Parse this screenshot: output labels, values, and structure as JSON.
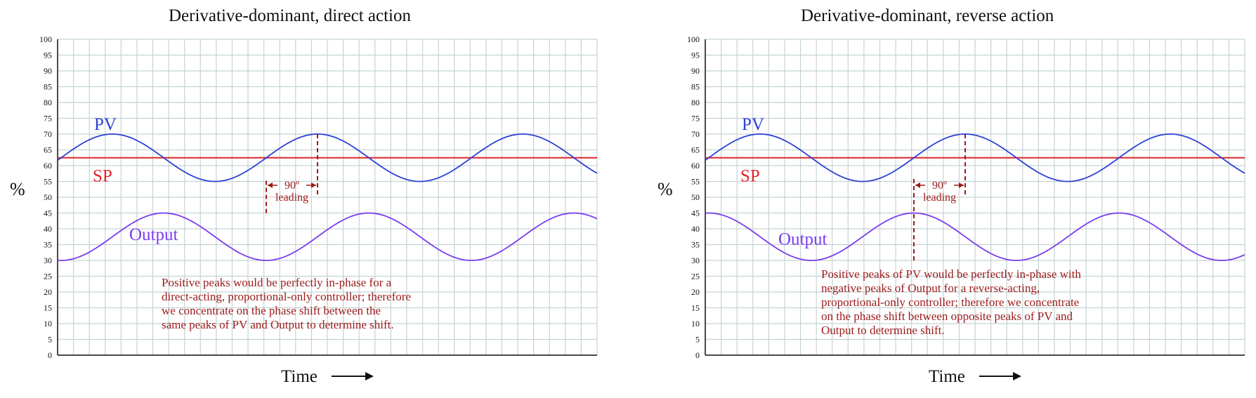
{
  "chart_data": [
    {
      "type": "line",
      "title": "Derivative-dominant, direct action",
      "xlabel": "Time",
      "ylabel": "%",
      "ylim": [
        0,
        100
      ],
      "yticks": [
        "0",
        "5",
        "10",
        "15",
        "20",
        "25",
        "30",
        "35",
        "40",
        "45",
        "50",
        "55",
        "60",
        "65",
        "70",
        "75",
        "80",
        "85",
        "90",
        "95",
        "100"
      ],
      "grid": true,
      "series": [
        {
          "name": "PV",
          "center": 62.5,
          "amplitude": 7.5,
          "phase_deg": 0,
          "color": "#2b3fd6"
        },
        {
          "name": "SP",
          "constant": 62.5,
          "color": "#e0262a"
        },
        {
          "name": "Output",
          "center": 37.5,
          "amplitude": 7.5,
          "phase_deg": 90,
          "color": "#7a3df0"
        }
      ],
      "annotations": {
        "phase_label": "90º",
        "phase_sub": "leading",
        "note": "Positive peaks would be perfectly in-phase for a\ndirect-acting, proportional-only controller; therefore\nwe concentrate on the phase shift between the\nsame peaks of PV and Output to determine shift."
      }
    },
    {
      "type": "line",
      "title": "Derivative-dominant, reverse action",
      "xlabel": "Time",
      "ylabel": "%",
      "ylim": [
        0,
        100
      ],
      "yticks": [
        "0",
        "5",
        "10",
        "15",
        "20",
        "25",
        "30",
        "35",
        "40",
        "45",
        "50",
        "55",
        "60",
        "65",
        "70",
        "75",
        "80",
        "85",
        "90",
        "95",
        "100"
      ],
      "grid": true,
      "series": [
        {
          "name": "PV",
          "center": 62.5,
          "amplitude": 7.5,
          "phase_deg": 0,
          "color": "#2b3fd6"
        },
        {
          "name": "SP",
          "constant": 62.5,
          "color": "#e0262a"
        },
        {
          "name": "Output",
          "center": 37.5,
          "amplitude": 7.5,
          "phase_deg": -90,
          "color": "#7a3df0"
        }
      ],
      "annotations": {
        "phase_label": "90º",
        "phase_sub": "leading",
        "note": "Positive peaks of PV would be perfectly in-phase with\nnegative peaks of Output for a reverse-acting,\nproportional-only controller; therefore we concentrate\non the phase shift between opposite peaks of PV and\nOutput to determine shift."
      }
    }
  ]
}
